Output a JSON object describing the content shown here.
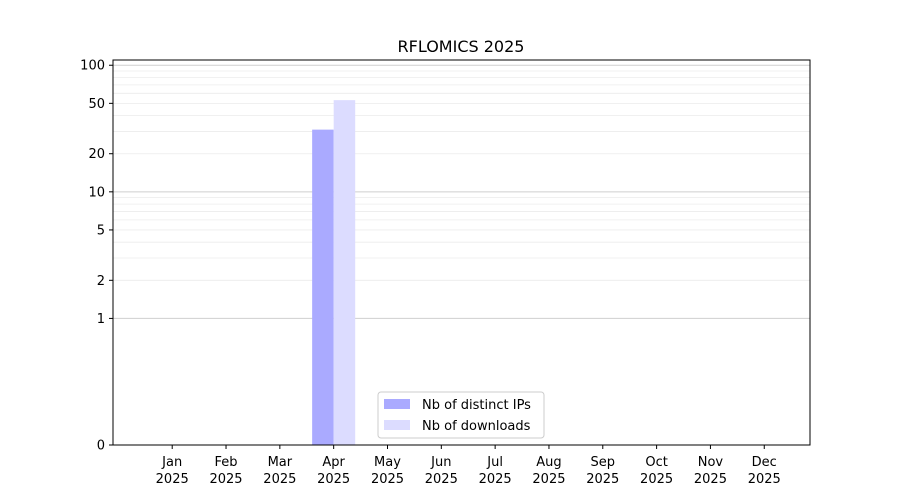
{
  "chart_data": {
    "type": "bar",
    "title": "RFLOMICS 2025",
    "xlabel": "",
    "ylabel": "",
    "y_scale": "symlog",
    "ylim": [
      0,
      110
    ],
    "yticks": [
      0,
      1,
      2,
      5,
      10,
      20,
      50,
      100
    ],
    "categories": [
      [
        "Jan",
        "2025"
      ],
      [
        "Feb",
        "2025"
      ],
      [
        "Mar",
        "2025"
      ],
      [
        "Apr",
        "2025"
      ],
      [
        "May",
        "2025"
      ],
      [
        "Jun",
        "2025"
      ],
      [
        "Jul",
        "2025"
      ],
      [
        "Aug",
        "2025"
      ],
      [
        "Sep",
        "2025"
      ],
      [
        "Oct",
        "2025"
      ],
      [
        "Nov",
        "2025"
      ],
      [
        "Dec",
        "2025"
      ]
    ],
    "series": [
      {
        "name": "Nb of distinct IPs",
        "color": "#aaaaff",
        "values": [
          0,
          0,
          0,
          31,
          0,
          0,
          0,
          0,
          0,
          0,
          0,
          0
        ]
      },
      {
        "name": "Nb of downloads",
        "color": "#dcdcff",
        "values": [
          0,
          0,
          0,
          53,
          0,
          0,
          0,
          0,
          0,
          0,
          0,
          0
        ]
      }
    ],
    "grid": "horizontal",
    "legend_position": "lower-center"
  }
}
